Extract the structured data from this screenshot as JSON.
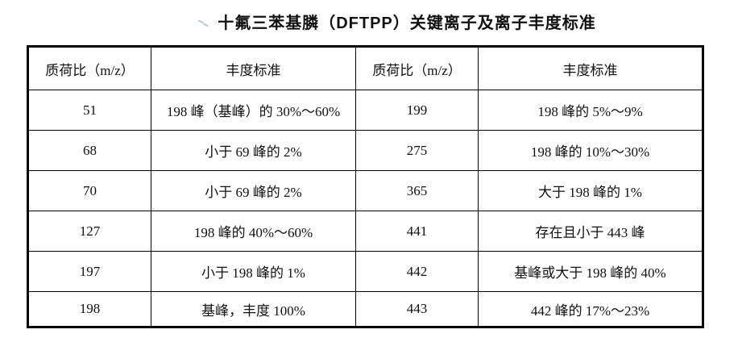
{
  "page": {
    "title": "十氟三苯基膦（DFTPP）关键离子及离子丰度标准"
  },
  "annotation": {
    "mark_color": "#a9cbe4"
  },
  "table": {
    "headers": [
      "质荷比（m/z）",
      "丰度标准",
      "质荷比（m/z）",
      "丰度标准"
    ],
    "rows": [
      [
        "51",
        "198 峰（基峰）的 30%～60%",
        "199",
        "198 峰的 5%～9%"
      ],
      [
        "68",
        "小于 69 峰的 2%",
        "275",
        "198 峰的 10%～30%"
      ],
      [
        "70",
        "小于 69 峰的 2%",
        "365",
        "大于 198 峰的 1%"
      ],
      [
        "127",
        "198 峰的 40%～60%",
        "441",
        "存在且小于 443 峰"
      ],
      [
        "197",
        "小于 198 峰的 1%",
        "442",
        "基峰或大于 198 峰的 40%"
      ],
      [
        "198",
        "基峰，丰度 100%",
        "443",
        "442 峰的 17%～23%"
      ]
    ]
  }
}
